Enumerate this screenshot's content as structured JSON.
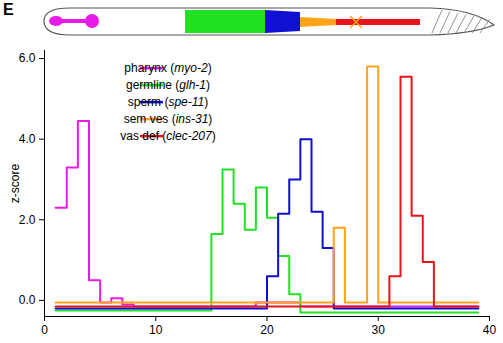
{
  "chart_data": {
    "type": "line",
    "title": "E",
    "y_label": "z-score",
    "x": [
      1,
      2,
      3,
      4,
      5,
      6,
      7,
      8,
      9,
      10,
      11,
      12,
      13,
      14,
      15,
      16,
      17,
      18,
      19,
      20,
      21,
      22,
      23,
      24,
      25,
      26,
      27,
      28,
      29,
      30,
      31,
      32,
      33,
      34,
      35,
      36,
      37,
      38,
      39
    ],
    "series": [
      {
        "name": "pharynx (myo-2)",
        "color": "#e81ce8",
        "values": [
          2.3,
          3.3,
          4.45,
          0.5,
          -0.05,
          0.05,
          -0.1,
          -0.15,
          -0.15,
          -0.15,
          -0.15,
          -0.15,
          -0.15,
          -0.15,
          -0.15,
          -0.15,
          -0.15,
          -0.15,
          -0.05,
          -0.05,
          -0.05,
          -0.05,
          -0.15,
          -0.15,
          -0.15,
          -0.15,
          -0.15,
          -0.15,
          -0.15,
          -0.15,
          -0.15,
          -0.15,
          -0.15,
          -0.15,
          -0.15,
          -0.15,
          -0.15,
          -0.15,
          -0.15
        ]
      },
      {
        "name": "germline (glh-1)",
        "color": "#22e022",
        "values": [
          -0.25,
          -0.25,
          -0.25,
          -0.25,
          -0.25,
          -0.25,
          -0.25,
          -0.25,
          -0.25,
          -0.25,
          -0.25,
          -0.25,
          -0.25,
          -0.25,
          1.65,
          3.25,
          2.4,
          1.75,
          2.8,
          2.05,
          1.1,
          0.15,
          -0.3,
          -0.3,
          -0.3,
          -0.3,
          -0.3,
          -0.3,
          -0.3,
          -0.3,
          -0.3,
          -0.3,
          -0.3,
          -0.3,
          -0.3,
          -0.3,
          -0.3,
          -0.3,
          -0.3
        ]
      },
      {
        "name": "sperm (spe-11)",
        "color": "#1010d0",
        "values": [
          -0.2,
          -0.2,
          -0.2,
          -0.2,
          -0.2,
          -0.2,
          -0.2,
          -0.2,
          -0.2,
          -0.2,
          -0.2,
          -0.2,
          -0.2,
          -0.2,
          -0.2,
          -0.2,
          -0.2,
          -0.2,
          -0.2,
          0.6,
          2.15,
          3.0,
          4.0,
          2.2,
          1.3,
          -0.2,
          -0.2,
          -0.2,
          -0.2,
          -0.2,
          -0.2,
          -0.2,
          -0.2,
          -0.2,
          -0.2,
          -0.2,
          -0.2,
          -0.2,
          -0.2
        ]
      },
      {
        "name": "sem ves (ins-31)",
        "color": "#ffa31a",
        "values": [
          -0.05,
          -0.05,
          -0.05,
          -0.05,
          -0.05,
          -0.05,
          -0.05,
          -0.05,
          -0.05,
          -0.05,
          -0.05,
          -0.05,
          -0.05,
          -0.05,
          -0.05,
          -0.05,
          -0.05,
          -0.05,
          -0.05,
          -0.05,
          -0.05,
          -0.05,
          -0.05,
          -0.05,
          -0.05,
          1.8,
          -0.05,
          -0.05,
          5.8,
          -0.05,
          -0.05,
          -0.05,
          -0.05,
          -0.05,
          -0.05,
          -0.05,
          -0.05,
          -0.05,
          -0.05
        ]
      },
      {
        "name": "vas def (clec-207)",
        "color": "#e8141c",
        "values": [
          -0.15,
          -0.15,
          -0.15,
          -0.15,
          -0.15,
          -0.15,
          -0.15,
          -0.15,
          -0.15,
          -0.15,
          -0.15,
          -0.15,
          -0.15,
          -0.15,
          -0.15,
          -0.15,
          -0.15,
          -0.15,
          -0.15,
          -0.15,
          -0.15,
          -0.15,
          -0.15,
          -0.15,
          -0.15,
          -0.15,
          -0.15,
          -0.15,
          -0.15,
          -0.15,
          0.6,
          5.55,
          2.1,
          0.95,
          -0.15,
          -0.15,
          -0.15,
          -0.15,
          -0.15
        ]
      }
    ],
    "xlim": [
      0,
      40
    ],
    "xticks": [
      0,
      10,
      20,
      30,
      40
    ],
    "ylim": [
      -0.4,
      6.2
    ],
    "yticks": [
      0,
      2,
      4,
      6
    ],
    "grid": false,
    "legend": "upper left"
  }
}
